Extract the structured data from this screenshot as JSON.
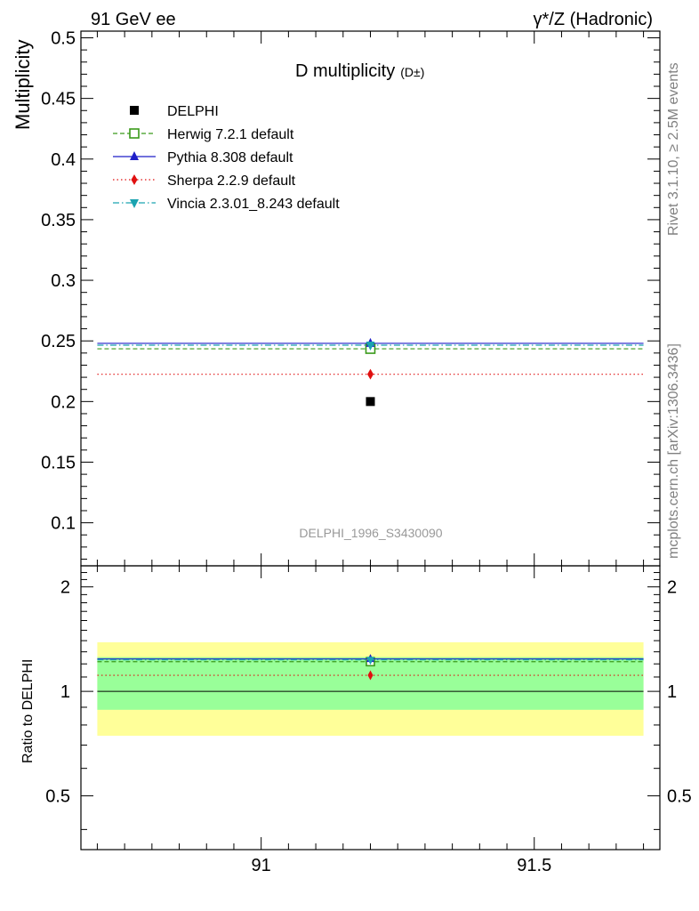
{
  "header": {
    "left_label": "91 GeV ee",
    "right_label": "γ*/Z (Hadronic)"
  },
  "side_labels": {
    "rivet": "Rivet 3.1.10, ≥ 2.5M events",
    "mcplots": "mcplots.cern.ch [arXiv:1306.3436]"
  },
  "chart_data": [
    {
      "type": "line",
      "title": "D multiplicity",
      "title_suffix": "(D±)",
      "ylabel": "Multiplicity",
      "xlim": [
        90.67,
        91.73
      ],
      "ylim": [
        0.0645,
        0.5055
      ],
      "yticks": [
        0.1,
        0.15,
        0.2,
        0.25,
        0.3,
        0.35,
        0.4,
        0.45,
        0.5
      ],
      "yticklabels": [
        "0.1",
        "0.15",
        "0.2",
        "0.25",
        "0.3",
        "0.35",
        "0.4",
        "0.45",
        "0.5"
      ],
      "watermark": "DELPHI_1996_S3430090",
      "legend_position": "top-left",
      "data_point": {
        "name": "DELPHI",
        "x": 91.2,
        "y": 0.2,
        "color": "#000000",
        "marker": "square"
      },
      "series": [
        {
          "name": "Herwig 7.2.1 default",
          "x_range": [
            90.7,
            91.7
          ],
          "value": 0.2435,
          "marker_x": 91.2,
          "color": "#3a9a1a",
          "dash": "dashed",
          "marker": "open-square"
        },
        {
          "name": "Pythia 8.308 default",
          "x_range": [
            90.7,
            91.7
          ],
          "value": 0.248,
          "marker_x": 91.2,
          "color": "#1f1fc8",
          "dash": "solid",
          "marker": "triangle-up"
        },
        {
          "name": "Sherpa 2.2.9 default",
          "x_range": [
            90.7,
            91.7
          ],
          "value": 0.2225,
          "marker_x": 91.2,
          "color": "#e01010",
          "dash": "dotted",
          "marker": "diamond"
        },
        {
          "name": "Vincia 2.3.01_8.243 default",
          "x_range": [
            90.7,
            91.7
          ],
          "value": 0.2465,
          "marker_x": 91.2,
          "color": "#1aa3b0",
          "dash": "dashdot",
          "marker": "triangle-down"
        }
      ]
    },
    {
      "type": "line",
      "ylabel": "Ratio to DELPHI",
      "xlim": [
        90.67,
        91.73
      ],
      "ylim": [
        0.35,
        2.3
      ],
      "xticks": [
        91,
        91.5
      ],
      "xticklabels": [
        "91",
        "91.5"
      ],
      "yticks": [
        0.5,
        1,
        2
      ],
      "yticklabels": [
        "0.5",
        "1",
        "2"
      ],
      "bands": [
        {
          "x_range": [
            90.7,
            91.7
          ],
          "low": 0.745,
          "high": 1.385,
          "color": "#ffff99"
        },
        {
          "x_range": [
            90.7,
            91.7
          ],
          "low": 0.885,
          "high": 1.255,
          "color": "#99ff99"
        }
      ],
      "reference": 1,
      "series": [
        {
          "name": "Herwig 7.2.1 default",
          "value": 1.2175,
          "color": "#3a9a1a"
        },
        {
          "name": "Pythia 8.308 default",
          "value": 1.24,
          "color": "#1f1fc8"
        },
        {
          "name": "Sherpa 2.2.9 default",
          "value": 1.1125,
          "color": "#e01010"
        },
        {
          "name": "Vincia 2.3.01_8.243 default",
          "value": 1.2325,
          "color": "#1aa3b0"
        }
      ]
    }
  ]
}
